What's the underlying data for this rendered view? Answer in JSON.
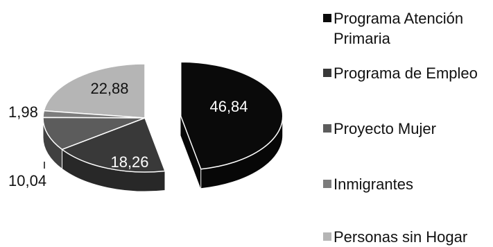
{
  "chart_data": {
    "type": "pie",
    "title": "",
    "categories": [
      "Programa Atención Primaria",
      "Programa de Empleo",
      "Proyecto Mujer",
      "Inmigrantes",
      "Personas sin Hogar"
    ],
    "values": [
      46.84,
      18.26,
      10.04,
      1.98,
      22.88
    ],
    "value_labels": [
      "46,84",
      "18,26",
      "10,04",
      "1,98",
      "22,88"
    ],
    "colors": [
      "#0a0a0a",
      "#393939",
      "#5c5c5c",
      "#7c7c7c",
      "#b5b5b5"
    ],
    "legend_position": "right",
    "exploded": [
      true,
      false,
      false,
      false,
      false
    ],
    "style": "3d-exploded"
  },
  "legend": {
    "items": [
      {
        "label": "Programa Atención Primaria",
        "color": "#0a0a0a"
      },
      {
        "label": "Programa de Empleo",
        "color": "#393939"
      },
      {
        "label": "Proyecto Mujer",
        "color": "#5c5c5c"
      },
      {
        "label": "Inmigrantes",
        "color": "#7c7c7c"
      },
      {
        "label": "Personas sin Hogar",
        "color": "#b5b5b5"
      }
    ]
  }
}
